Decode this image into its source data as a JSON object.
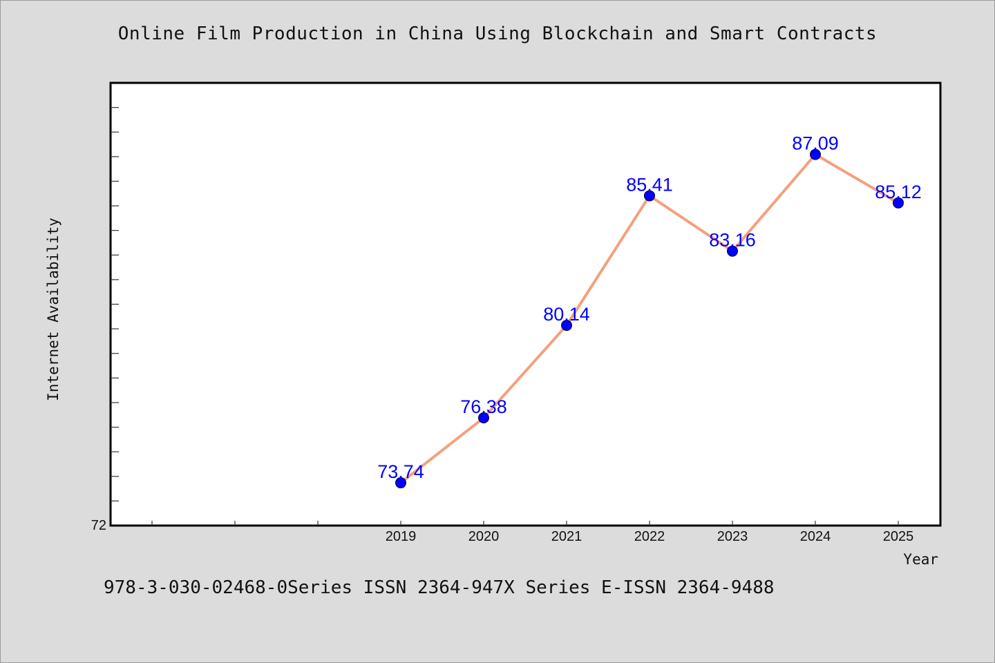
{
  "chart_data": {
    "type": "line",
    "title": "Online Film Production in China Using Blockchain and Smart Contracts",
    "xlabel": "Year",
    "ylabel": "Internet Availability",
    "categories": [
      "2019",
      "2020",
      "2021",
      "2022",
      "2023",
      "2024",
      "2025"
    ],
    "series": [
      {
        "values": [
          73.74,
          76.38,
          80.14,
          85.41,
          83.16,
          87.09,
          85.12
        ],
        "labels": [
          "73.74",
          "76.38",
          "80.14",
          "85.41",
          "83.16",
          "87.09",
          "85.12"
        ],
        "line_color": "#f4a07e",
        "marker_color": "#0000ff",
        "label_color": "#0000ff"
      }
    ],
    "y_tick_labels": [
      "72"
    ],
    "ylim": [
      72,
      90
    ],
    "grid": false,
    "plot_background": "#ffffff",
    "figure_background": "#dcdcdc"
  },
  "footer": "978-3-030-02468-0Series ISSN 2364-947X Series E-ISSN 2364-9488"
}
